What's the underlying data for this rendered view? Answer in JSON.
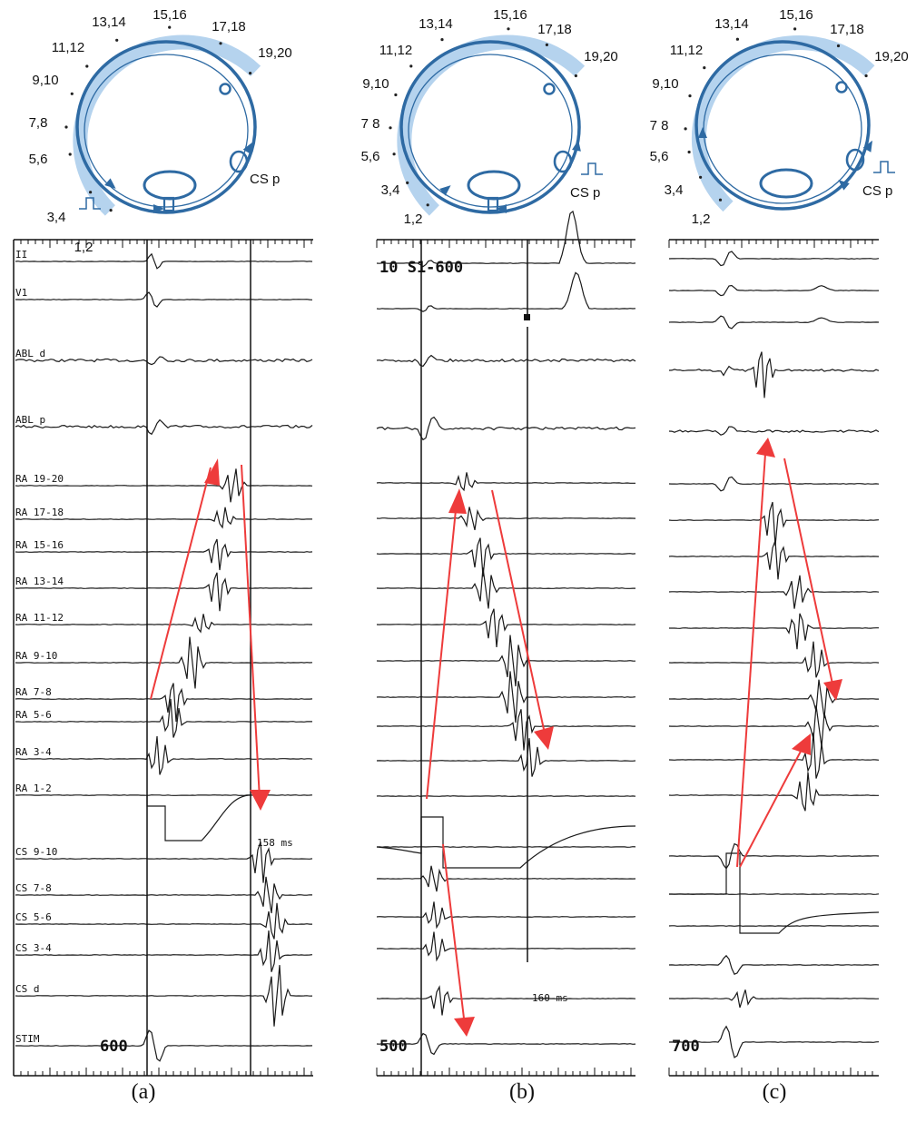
{
  "panels": [
    {
      "id": "a",
      "caption": "(a)",
      "diagram_labels": [
        "1,2",
        "3,4",
        "5,6",
        "7,8",
        "9,10",
        "11,12",
        "13,14",
        "15,16",
        "17,18",
        "19,20"
      ],
      "cs_label": "CS p",
      "trace_labels": [
        "II",
        "V1",
        "ABL d",
        "ABL p",
        "RA 19-20",
        "RA 17-18",
        "RA 15-16",
        "RA 13-14",
        "RA 11-12",
        "RA 9-10",
        "RA 7-8",
        "RA 5-6",
        "RA 3-4",
        "RA 1-2",
        "CS 9-10",
        "CS 7-8",
        "CS 5-6",
        "CS 3-4",
        "CS d",
        "STIM"
      ],
      "cycle_length": "600",
      "interval_text": "158 ms"
    },
    {
      "id": "b",
      "caption": "(b)",
      "diagram_labels": [
        "1,2",
        "3,4",
        "5,6",
        "7 8",
        "9,10",
        "11,12",
        "13,14",
        "15,16",
        "17,18",
        "19,20"
      ],
      "cs_label": "CS p",
      "header_text": "10 S1-600",
      "cycle_length": "500",
      "interval_text": "160 ms"
    },
    {
      "id": "c",
      "caption": "(c)",
      "diagram_labels": [
        "1,2",
        "3,4",
        "5,6",
        "7 8",
        "9,10",
        "11,12",
        "13,14",
        "15,16",
        "17,18",
        "19,20"
      ],
      "cs_label": "CS p",
      "cycle_length": "700"
    }
  ],
  "colors": {
    "catheter_band": "#b5d3ee",
    "diagram_line": "#2e6aa3",
    "arrow": "#ee3b3b",
    "trace": "#1a1a1a"
  }
}
